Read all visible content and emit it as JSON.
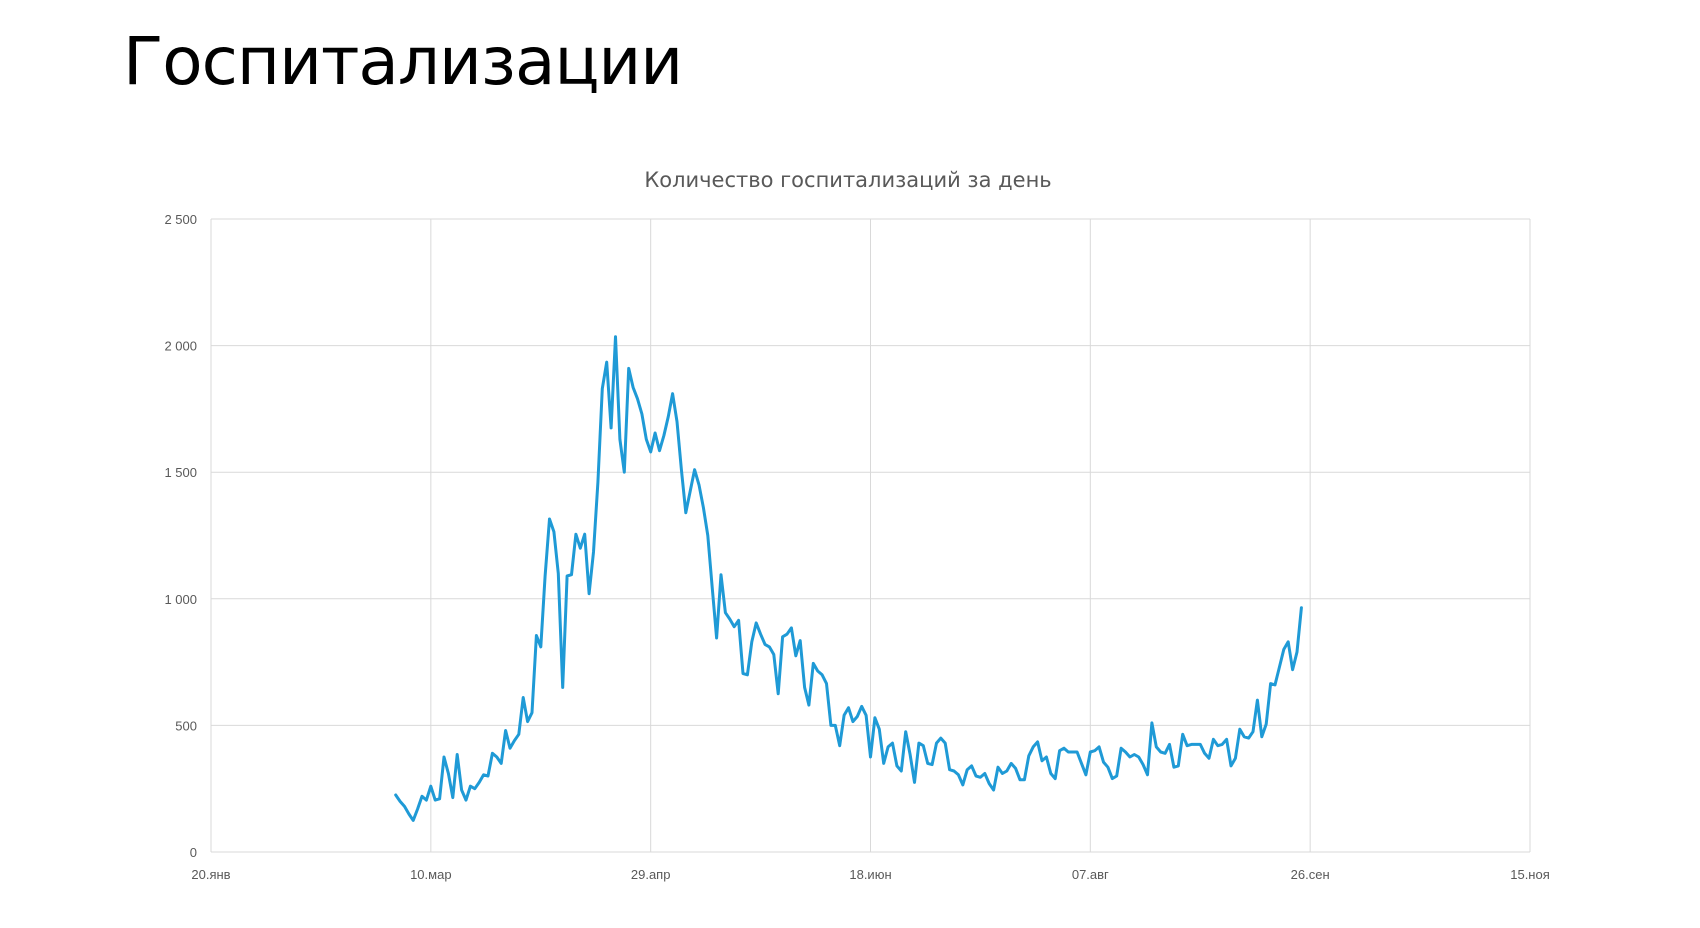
{
  "slide": {
    "title": "Госпитализации"
  },
  "chart_data": {
    "type": "line",
    "title": "Количество госпитализаций за день",
    "xlabel": "",
    "ylabel": "",
    "ylim": [
      0,
      2500
    ],
    "yticks": [
      0,
      500,
      1000,
      1500,
      2000,
      2500
    ],
    "ytick_labels": [
      "0",
      "500",
      "1 000",
      "1 500",
      "2 000",
      "2 500"
    ],
    "xlim": [
      "2020-01-20",
      "2020-11-15"
    ],
    "xticks": [
      "2020-01-20",
      "2020-03-10",
      "2020-04-29",
      "2020-06-18",
      "2020-08-07",
      "2020-09-26",
      "2020-11-15"
    ],
    "xtick_labels": [
      "20.янв",
      "10.мар",
      "29.апр",
      "18.июн",
      "07.авг",
      "26.сен",
      "15.ноя"
    ],
    "grid": true,
    "legend": "none",
    "color": "#1f9ad6",
    "series": [
      {
        "start_date": "2020-03-02",
        "values": [
          225,
          200,
          180,
          150,
          125,
          170,
          220,
          205,
          260,
          205,
          210,
          375,
          310,
          215,
          385,
          245,
          205,
          260,
          250,
          275,
          305,
          300,
          390,
          375,
          350,
          480,
          410,
          440,
          465,
          610,
          515,
          550,
          855,
          810,
          1090,
          1315,
          1265,
          1100,
          650,
          1090,
          1095,
          1255,
          1200,
          1255,
          1020,
          1185,
          1460,
          1830,
          1935,
          1675,
          2035,
          1630,
          1500,
          1910,
          1835,
          1790,
          1730,
          1630,
          1580,
          1655,
          1585,
          1645,
          1720,
          1810,
          1700,
          1510,
          1340,
          1425,
          1510,
          1450,
          1360,
          1250,
          1045,
          845,
          1095,
          945,
          920,
          890,
          915,
          705,
          700,
          830,
          905,
          860,
          820,
          810,
          780,
          625,
          850,
          860,
          885,
          775,
          835,
          650,
          580,
          745,
          715,
          700,
          665,
          500,
          500,
          420,
          540,
          570,
          515,
          535,
          575,
          540,
          375,
          530,
          485,
          350,
          415,
          430,
          340,
          320,
          475,
          385,
          275,
          430,
          420,
          350,
          345,
          430,
          450,
          430,
          325,
          320,
          305,
          265,
          325,
          340,
          300,
          295,
          310,
          270,
          245,
          335,
          310,
          320,
          350,
          330,
          285,
          285,
          380,
          415,
          435,
          360,
          375,
          310,
          290,
          400,
          410,
          395,
          395,
          395,
          350,
          305,
          395,
          400,
          415,
          355,
          335,
          290,
          300,
          410,
          395,
          375,
          385,
          375,
          345,
          305,
          510,
          415,
          395,
          390,
          425,
          335,
          340,
          465,
          420,
          425,
          425,
          425,
          390,
          370,
          445,
          420,
          425,
          445,
          340,
          370,
          485,
          455,
          450,
          475,
          600,
          455,
          505,
          665,
          660,
          730,
          800,
          830,
          720,
          790,
          965
        ]
      }
    ]
  }
}
